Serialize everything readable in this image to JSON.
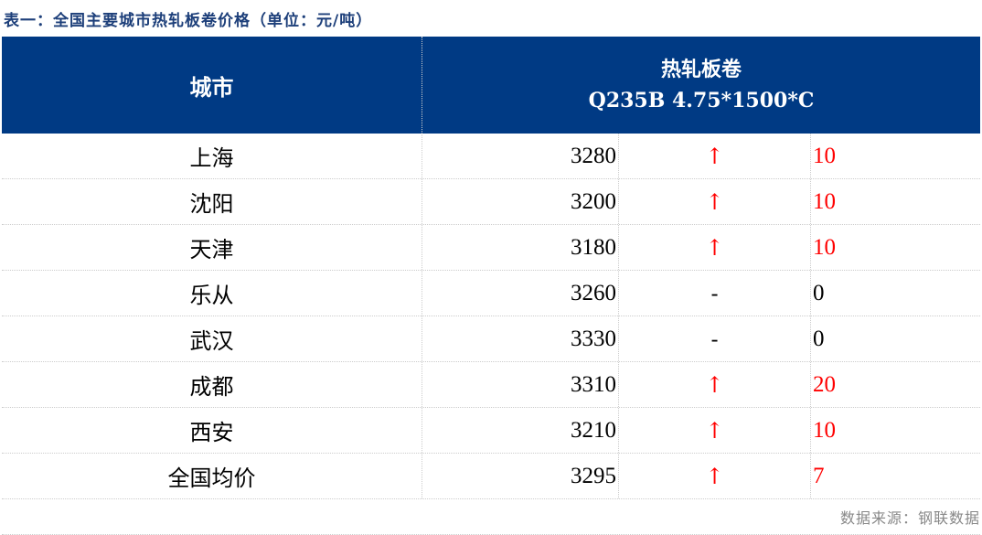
{
  "title": "表一：全国主要城市热轧板卷价格（单位：元/吨）",
  "header": {
    "city": "城市",
    "product": "热轧板卷",
    "spec": "Q235B 4.75*1500*C"
  },
  "colors": {
    "header_bg": "#003a84",
    "up": "#ff0000"
  },
  "rows": [
    {
      "city": "上海",
      "price": "3280",
      "trend": "↑",
      "change": "10",
      "dir": "up"
    },
    {
      "city": "沈阳",
      "price": "3200",
      "trend": "↑",
      "change": "10",
      "dir": "up"
    },
    {
      "city": "天津",
      "price": "3180",
      "trend": "↑",
      "change": "10",
      "dir": "up"
    },
    {
      "city": "乐从",
      "price": "3260",
      "trend": "-",
      "change": "0",
      "dir": "flat"
    },
    {
      "city": "武汉",
      "price": "3330",
      "trend": "-",
      "change": "0",
      "dir": "flat"
    },
    {
      "city": "成都",
      "price": "3310",
      "trend": "↑",
      "change": "20",
      "dir": "up"
    },
    {
      "city": "西安",
      "price": "3210",
      "trend": "↑",
      "change": "10",
      "dir": "up"
    },
    {
      "city": "全国均价",
      "price": "3295",
      "trend": "↑",
      "change": "7",
      "dir": "up"
    }
  ],
  "footer": "数据来源：钢联数据"
}
